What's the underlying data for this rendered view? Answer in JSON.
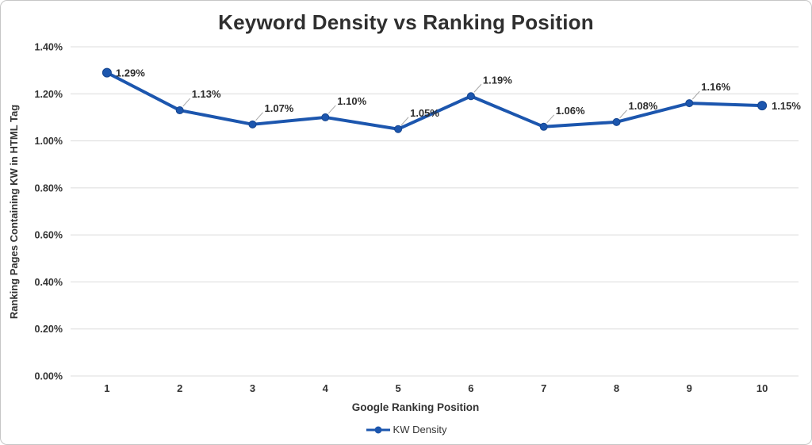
{
  "chart_data": {
    "type": "line",
    "title": "Keyword Density vs Ranking Position",
    "xlabel": "Google Ranking Position",
    "ylabel": "Ranking Pages Containing KW in HTML Tag",
    "categories": [
      "1",
      "2",
      "3",
      "4",
      "5",
      "6",
      "7",
      "8",
      "9",
      "10"
    ],
    "series": [
      {
        "name": "KW Density",
        "values": [
          1.29,
          1.13,
          1.07,
          1.1,
          1.05,
          1.19,
          1.06,
          1.08,
          1.16,
          1.15
        ],
        "point_labels": [
          "1.29%",
          "1.13%",
          "1.07%",
          "1.10%",
          "1.05%",
          "1.19%",
          "1.06%",
          "1.08%",
          "1.16%",
          "1.15%"
        ]
      }
    ],
    "y_ticks": [
      0,
      0.2,
      0.4,
      0.6,
      0.8,
      1.0,
      1.2,
      1.4
    ],
    "y_tick_suffix": "%",
    "ylim": [
      0,
      1.4
    ],
    "grid": true,
    "legend_position": "bottom",
    "colors": {
      "line": "#1c56ae",
      "marker_stroke": "#15458f",
      "grid": "#dcdcdc",
      "tick_text": "#333333",
      "label_text": "#2d2d2d",
      "leader": "#a8a8a8",
      "title_text": "#2f2f2f"
    }
  }
}
